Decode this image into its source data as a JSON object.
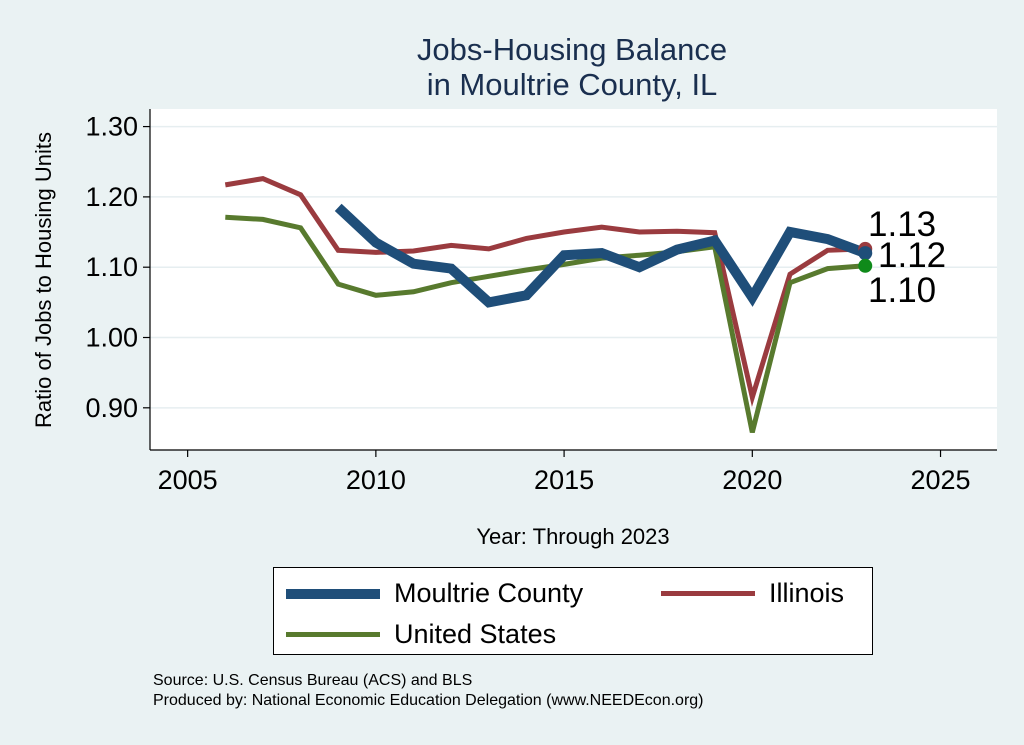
{
  "title_lines": [
    "Jobs-Housing Balance",
    "in Moultrie County, IL"
  ],
  "footer": {
    "source": "Source: U.S. Census Bureau (ACS) and BLS",
    "produced": "Produced by: National Economic Education Delegation (www.NEEDEcon.org)"
  },
  "chart_data": {
    "type": "line",
    "title": "Jobs-Housing Balance in Moultrie County, IL",
    "xlabel": "Year: Through 2023",
    "ylabel": "Ratio of Jobs to Housing Units",
    "xlim": [
      2004,
      2026.5
    ],
    "ylim": [
      0.84,
      1.325
    ],
    "xticks": [
      2005,
      2010,
      2015,
      2020,
      2025
    ],
    "yticks": [
      0.9,
      1.0,
      1.1,
      1.2,
      1.3
    ],
    "ytick_labels": [
      "0.90",
      "1.00",
      "1.10",
      "1.20",
      "1.30"
    ],
    "grid": true,
    "legend_position": "bottom",
    "series": [
      {
        "name": "Moultrie County",
        "color": "#1f4e79",
        "x": [
          2009,
          2010,
          2011,
          2012,
          2013,
          2014,
          2015,
          2016,
          2017,
          2018,
          2019,
          2020,
          2021,
          2022,
          2023
        ],
        "values": [
          1.185,
          1.135,
          1.105,
          1.098,
          1.05,
          1.06,
          1.117,
          1.12,
          1.1,
          1.125,
          1.138,
          1.057,
          1.15,
          1.14,
          1.12
        ]
      },
      {
        "name": "Illinois",
        "color": "#9a3b3f",
        "x": [
          2006,
          2007,
          2008,
          2009,
          2010,
          2011,
          2012,
          2013,
          2014,
          2015,
          2016,
          2017,
          2018,
          2019,
          2020,
          2021,
          2022,
          2023
        ],
        "values": [
          1.217,
          1.226,
          1.203,
          1.124,
          1.121,
          1.123,
          1.131,
          1.126,
          1.141,
          1.15,
          1.157,
          1.15,
          1.151,
          1.149,
          0.915,
          1.09,
          1.124,
          1.126
        ]
      },
      {
        "name": "United States",
        "color": "#587a2e",
        "x": [
          2006,
          2007,
          2008,
          2009,
          2010,
          2011,
          2012,
          2013,
          2014,
          2015,
          2016,
          2017,
          2018,
          2019,
          2020,
          2021,
          2022,
          2023
        ],
        "values": [
          1.171,
          1.168,
          1.156,
          1.076,
          1.06,
          1.065,
          1.078,
          1.087,
          1.096,
          1.104,
          1.113,
          1.117,
          1.122,
          1.129,
          0.865,
          1.078,
          1.098,
          1.102
        ]
      }
    ],
    "end_labels": [
      {
        "series": "Illinois",
        "text": "1.13",
        "dot_color": "#9a3b3f"
      },
      {
        "series": "Moultrie County",
        "text": "1.12",
        "dot_color": "#1f4e79"
      },
      {
        "series": "United States",
        "text": "1.10",
        "dot_color": "#0f8a1a"
      }
    ]
  }
}
